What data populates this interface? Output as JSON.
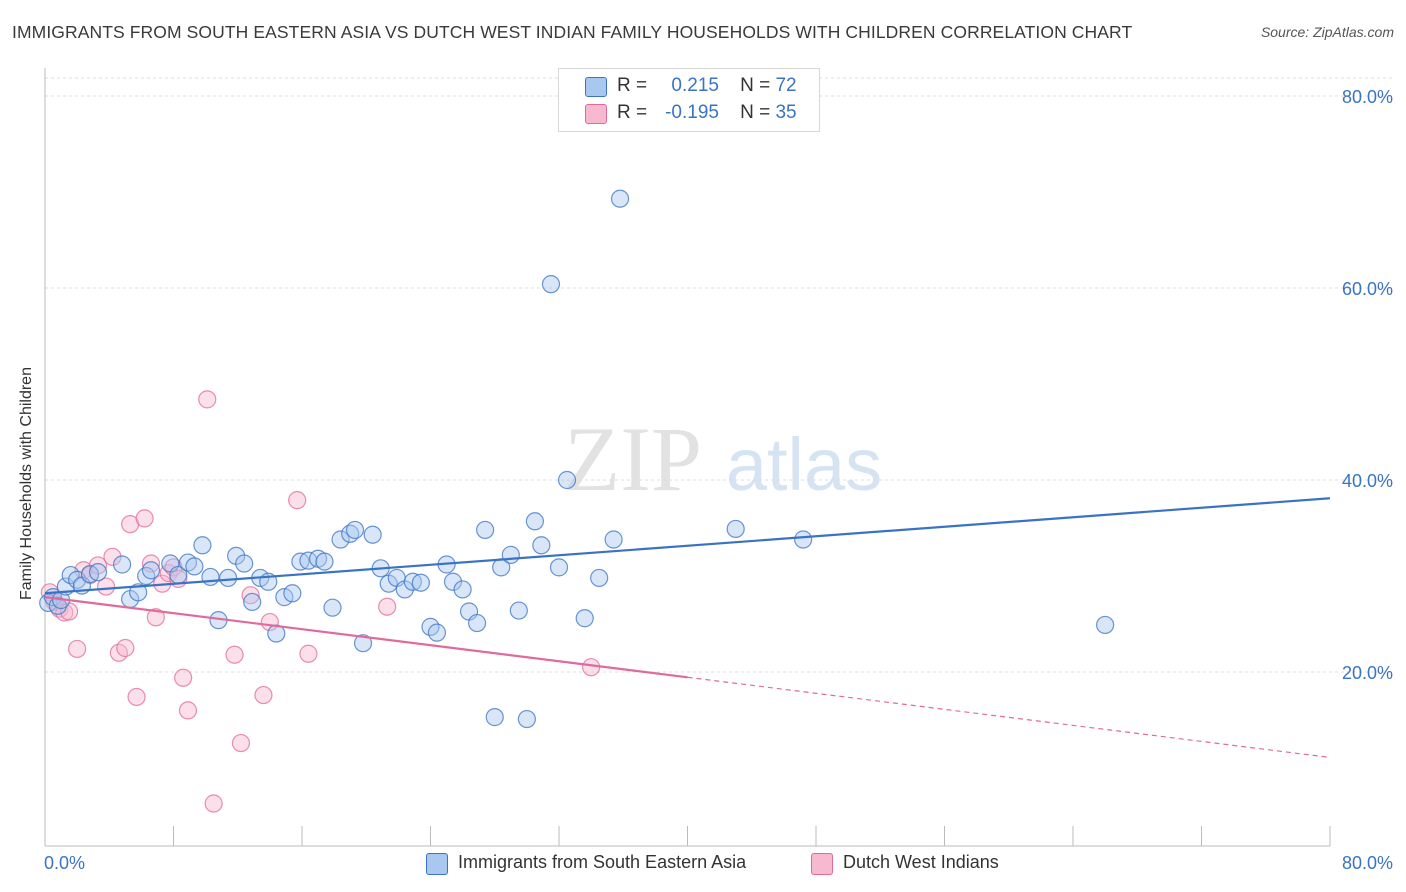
{
  "title": "IMMIGRANTS FROM SOUTH EASTERN ASIA VS DUTCH WEST INDIAN FAMILY HOUSEHOLDS WITH CHILDREN CORRELATION CHART",
  "source": "Source: ZipAtlas.com",
  "watermark": {
    "zip": "ZIP",
    "atlas": "atlas"
  },
  "colors": {
    "blue": "#3a73c4",
    "blue_fill": "#a9c8ef",
    "pink": "#e06a9a",
    "pink_fill": "#f6b9cf",
    "grid": "#dddddd",
    "axis_label": "#3a73c4"
  },
  "legend": {
    "r_label": "R =",
    "n_label": "N =",
    "rows": [
      {
        "r": "0.215",
        "n": "72"
      },
      {
        "r": "-0.195",
        "n": "35"
      }
    ]
  },
  "chart_data": {
    "type": "scatter",
    "title": "IMMIGRANTS FROM SOUTH EASTERN ASIA VS DUTCH WEST INDIAN FAMILY HOUSEHOLDS WITH CHILDREN CORRELATION CHART",
    "xlabel": "",
    "ylabel": "Family Households with Children",
    "xlim": [
      0,
      80
    ],
    "ylim": [
      0,
      80
    ],
    "x_tick_labels": [
      "0.0%",
      "80.0%"
    ],
    "y_tick_labels": [
      "20.0%",
      "40.0%",
      "60.0%",
      "80.0%"
    ],
    "y_ticks": [
      20,
      40,
      60,
      80
    ],
    "grid": true,
    "legend_position": "top-center",
    "series": [
      {
        "name": "Immigrants from South Eastern Asia",
        "color": "#3a73c4",
        "r": 0.215,
        "n": 72,
        "trend": {
          "x": [
            0,
            80
          ],
          "y": [
            28.2,
            38.1
          ],
          "dashed_from": null
        },
        "points": [
          [
            0.2,
            27.2
          ],
          [
            0.5,
            27.8
          ],
          [
            0.8,
            26.9
          ],
          [
            1.0,
            27.5
          ],
          [
            1.3,
            28.9
          ],
          [
            1.6,
            30.1
          ],
          [
            2.0,
            29.6
          ],
          [
            2.3,
            29.0
          ],
          [
            2.8,
            30.2
          ],
          [
            3.3,
            30.4
          ],
          [
            4.8,
            31.2
          ],
          [
            5.3,
            27.6
          ],
          [
            5.8,
            28.3
          ],
          [
            6.3,
            30.0
          ],
          [
            6.6,
            30.6
          ],
          [
            7.8,
            31.3
          ],
          [
            8.3,
            30.1
          ],
          [
            8.9,
            31.4
          ],
          [
            9.3,
            31.0
          ],
          [
            9.8,
            33.2
          ],
          [
            10.3,
            29.9
          ],
          [
            10.8,
            25.4
          ],
          [
            11.4,
            29.8
          ],
          [
            11.9,
            32.1
          ],
          [
            12.4,
            31.3
          ],
          [
            12.9,
            27.3
          ],
          [
            13.4,
            29.8
          ],
          [
            13.9,
            29.4
          ],
          [
            14.4,
            24.0
          ],
          [
            14.9,
            27.8
          ],
          [
            15.4,
            28.2
          ],
          [
            15.9,
            31.5
          ],
          [
            16.4,
            31.6
          ],
          [
            17.0,
            31.8
          ],
          [
            17.4,
            31.5
          ],
          [
            17.9,
            26.7
          ],
          [
            18.4,
            33.8
          ],
          [
            19.0,
            34.4
          ],
          [
            19.3,
            34.8
          ],
          [
            19.8,
            23.0
          ],
          [
            20.4,
            34.3
          ],
          [
            20.9,
            30.8
          ],
          [
            21.4,
            29.2
          ],
          [
            21.9,
            29.8
          ],
          [
            22.4,
            28.6
          ],
          [
            22.9,
            29.4
          ],
          [
            23.4,
            29.3
          ],
          [
            24.0,
            24.7
          ],
          [
            24.4,
            24.1
          ],
          [
            25.0,
            31.2
          ],
          [
            25.4,
            29.4
          ],
          [
            26.0,
            28.6
          ],
          [
            26.4,
            26.3
          ],
          [
            26.9,
            25.1
          ],
          [
            27.4,
            34.8
          ],
          [
            28.0,
            15.3
          ],
          [
            28.4,
            30.9
          ],
          [
            29.0,
            32.2
          ],
          [
            29.5,
            26.4
          ],
          [
            30.0,
            15.1
          ],
          [
            30.5,
            35.7
          ],
          [
            30.9,
            33.2
          ],
          [
            31.5,
            60.4
          ],
          [
            32.0,
            30.9
          ],
          [
            32.5,
            40.0
          ],
          [
            33.6,
            25.6
          ],
          [
            34.5,
            29.8
          ],
          [
            35.4,
            33.8
          ],
          [
            35.8,
            69.3
          ],
          [
            43.0,
            34.9
          ],
          [
            47.2,
            33.8
          ],
          [
            66.0,
            24.9
          ]
        ]
      },
      {
        "name": "Dutch West Indians",
        "color": "#e06a9a",
        "r": -0.195,
        "n": 35,
        "trend": {
          "x": [
            0,
            80
          ],
          "y": [
            27.8,
            11.1
          ],
          "solid_until_x": 40
        },
        "points": [
          [
            0.3,
            28.3
          ],
          [
            0.6,
            27.3
          ],
          [
            0.9,
            26.6
          ],
          [
            1.2,
            26.2
          ],
          [
            1.5,
            26.3
          ],
          [
            2.0,
            22.4
          ],
          [
            2.4,
            30.6
          ],
          [
            2.8,
            30.1
          ],
          [
            3.3,
            31.1
          ],
          [
            3.8,
            28.9
          ],
          [
            4.2,
            32.0
          ],
          [
            4.6,
            22.0
          ],
          [
            5.0,
            22.5
          ],
          [
            5.3,
            35.4
          ],
          [
            5.7,
            17.4
          ],
          [
            6.2,
            36.0
          ],
          [
            6.6,
            31.3
          ],
          [
            6.9,
            25.7
          ],
          [
            7.3,
            29.2
          ],
          [
            7.7,
            30.3
          ],
          [
            8.0,
            30.9
          ],
          [
            8.3,
            29.7
          ],
          [
            8.6,
            19.4
          ],
          [
            8.9,
            16.0
          ],
          [
            10.1,
            48.4
          ],
          [
            10.5,
            6.3
          ],
          [
            11.8,
            21.8
          ],
          [
            12.2,
            12.6
          ],
          [
            12.8,
            28.0
          ],
          [
            13.6,
            17.6
          ],
          [
            14.0,
            25.2
          ],
          [
            15.7,
            37.9
          ],
          [
            16.4,
            21.9
          ],
          [
            21.3,
            26.8
          ],
          [
            34.0,
            20.5
          ]
        ]
      }
    ]
  }
}
